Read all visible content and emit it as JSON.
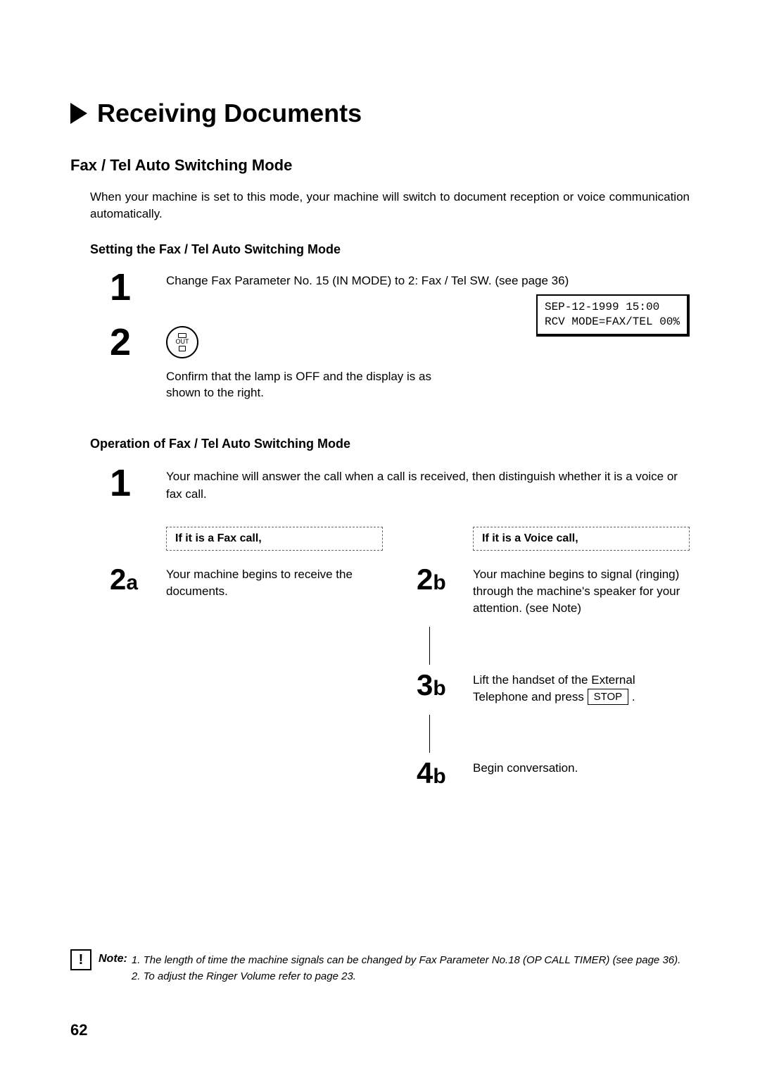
{
  "title": "Receiving Documents",
  "section_heading": "Fax / Tel Auto Switching Mode",
  "intro": "When your machine is set to this mode, your machine will switch to document reception or voice communication automatically.",
  "setting": {
    "heading": "Setting the Fax / Tel Auto Switching Mode",
    "step1_num": "1",
    "step1_text": "Change Fax Parameter No. 15 (IN MODE) to 2: Fax / Tel SW. (see page 36)",
    "step2_num": "2",
    "out_icon_label": "OUT",
    "lcd_line1": "SEP-12-1999 15:00",
    "lcd_line2": "RCV MODE=FAX/TEL 00%",
    "confirm_text": "Confirm that the lamp is OFF and the display is as shown to the right."
  },
  "operation": {
    "heading": "Operation of Fax / Tel Auto Switching Mode",
    "step1_num": "1",
    "step1_text": "Your machine will answer the call when a call is received, then distinguish whether it is a voice or fax call.",
    "fax_branch": {
      "label": "If it is a Fax call,",
      "s2a_num": "2a",
      "s2a_text": "Your machine begins to receive the documents."
    },
    "voice_branch": {
      "label": "If it is a Voice call,",
      "s2b_num": "2b",
      "s2b_text": "Your machine begins to signal (ringing) through the machine's speaker for your attention. (see Note)",
      "s3b_num": "3b",
      "s3b_text_pre": "Lift the handset of the External Telephone and press ",
      "s3b_key": "STOP",
      "s3b_text_post": " .",
      "s4b_num": "4b",
      "s4b_text": "Begin conversation."
    }
  },
  "note": {
    "icon": "!",
    "label": "Note:",
    "item1": "1. The length of time the machine signals can be changed by Fax Parameter No.18 (OP CALL TIMER) (see page 36).",
    "item2": "2. To adjust the Ringer Volume refer to page 23."
  },
  "page_number": "62"
}
